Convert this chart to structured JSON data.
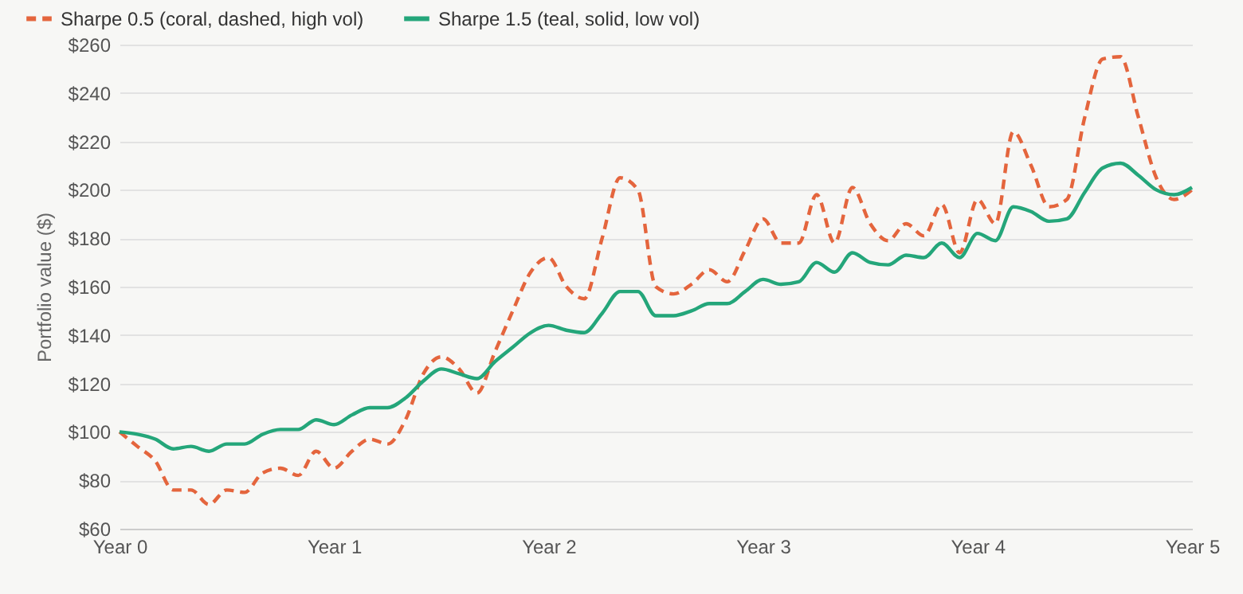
{
  "chart_data": {
    "type": "line",
    "ylabel": "Portfolio value ($)",
    "categories": [
      "Year 0",
      null,
      null,
      null,
      null,
      null,
      null,
      null,
      null,
      null,
      null,
      null,
      "Year 1",
      null,
      null,
      null,
      null,
      null,
      null,
      null,
      null,
      null,
      null,
      null,
      "Year 2",
      null,
      null,
      null,
      null,
      null,
      null,
      null,
      null,
      null,
      null,
      null,
      "Year 3",
      null,
      null,
      null,
      null,
      null,
      null,
      null,
      null,
      null,
      null,
      null,
      "Year 4",
      null,
      null,
      null,
      null,
      null,
      null,
      null,
      null,
      null,
      null,
      null,
      "Year 5"
    ],
    "series": [
      {
        "name": "Sharpe 0.5 (coral, dashed, high vol)",
        "color": "#e4653d",
        "line_style": "dashed",
        "values": [
          100,
          94,
          88,
          76,
          76,
          70,
          76,
          75,
          83,
          85,
          82,
          92,
          85,
          92,
          97,
          95,
          105,
          124,
          131,
          126,
          116,
          133,
          150,
          166,
          172,
          160,
          155,
          180,
          205,
          200,
          160,
          157,
          161,
          167,
          162,
          175,
          188,
          178,
          178,
          198,
          178,
          201,
          186,
          179,
          186,
          181,
          194,
          174,
          196,
          186,
          224,
          210,
          193,
          196,
          230,
          254,
          255,
          230,
          205,
          196,
          200
        ]
      },
      {
        "name": "Sharpe 1.5 (teal, solid, low vol)",
        "color": "#24a67a",
        "line_style": "solid",
        "values": [
          100,
          99,
          97,
          93,
          94,
          92,
          95,
          95,
          99,
          101,
          101,
          105,
          103,
          107,
          110,
          110,
          114,
          121,
          126,
          124,
          122,
          129,
          135,
          141,
          144,
          142,
          141,
          149,
          158,
          158,
          148,
          148,
          150,
          153,
          153,
          158,
          163,
          161,
          162,
          170,
          166,
          174,
          170,
          169,
          173,
          172,
          178,
          172,
          182,
          179,
          193,
          191,
          187,
          188,
          199,
          209,
          211,
          206,
          200,
          198,
          201
        ]
      }
    ],
    "ylim": [
      60,
      260
    ],
    "yticks": [
      {
        "value": 60,
        "label": "$60"
      },
      {
        "value": 80,
        "label": "$80"
      },
      {
        "value": 100,
        "label": "$100"
      },
      {
        "value": 120,
        "label": "$120"
      },
      {
        "value": 140,
        "label": "$140"
      },
      {
        "value": 160,
        "label": "$160"
      },
      {
        "value": 180,
        "label": "$180"
      },
      {
        "value": 200,
        "label": "$200"
      },
      {
        "value": 220,
        "label": "$220"
      },
      {
        "value": 240,
        "label": "$240"
      },
      {
        "value": 260,
        "label": "$260"
      }
    ],
    "grid": "y",
    "legend": "top left",
    "marker": "none"
  }
}
